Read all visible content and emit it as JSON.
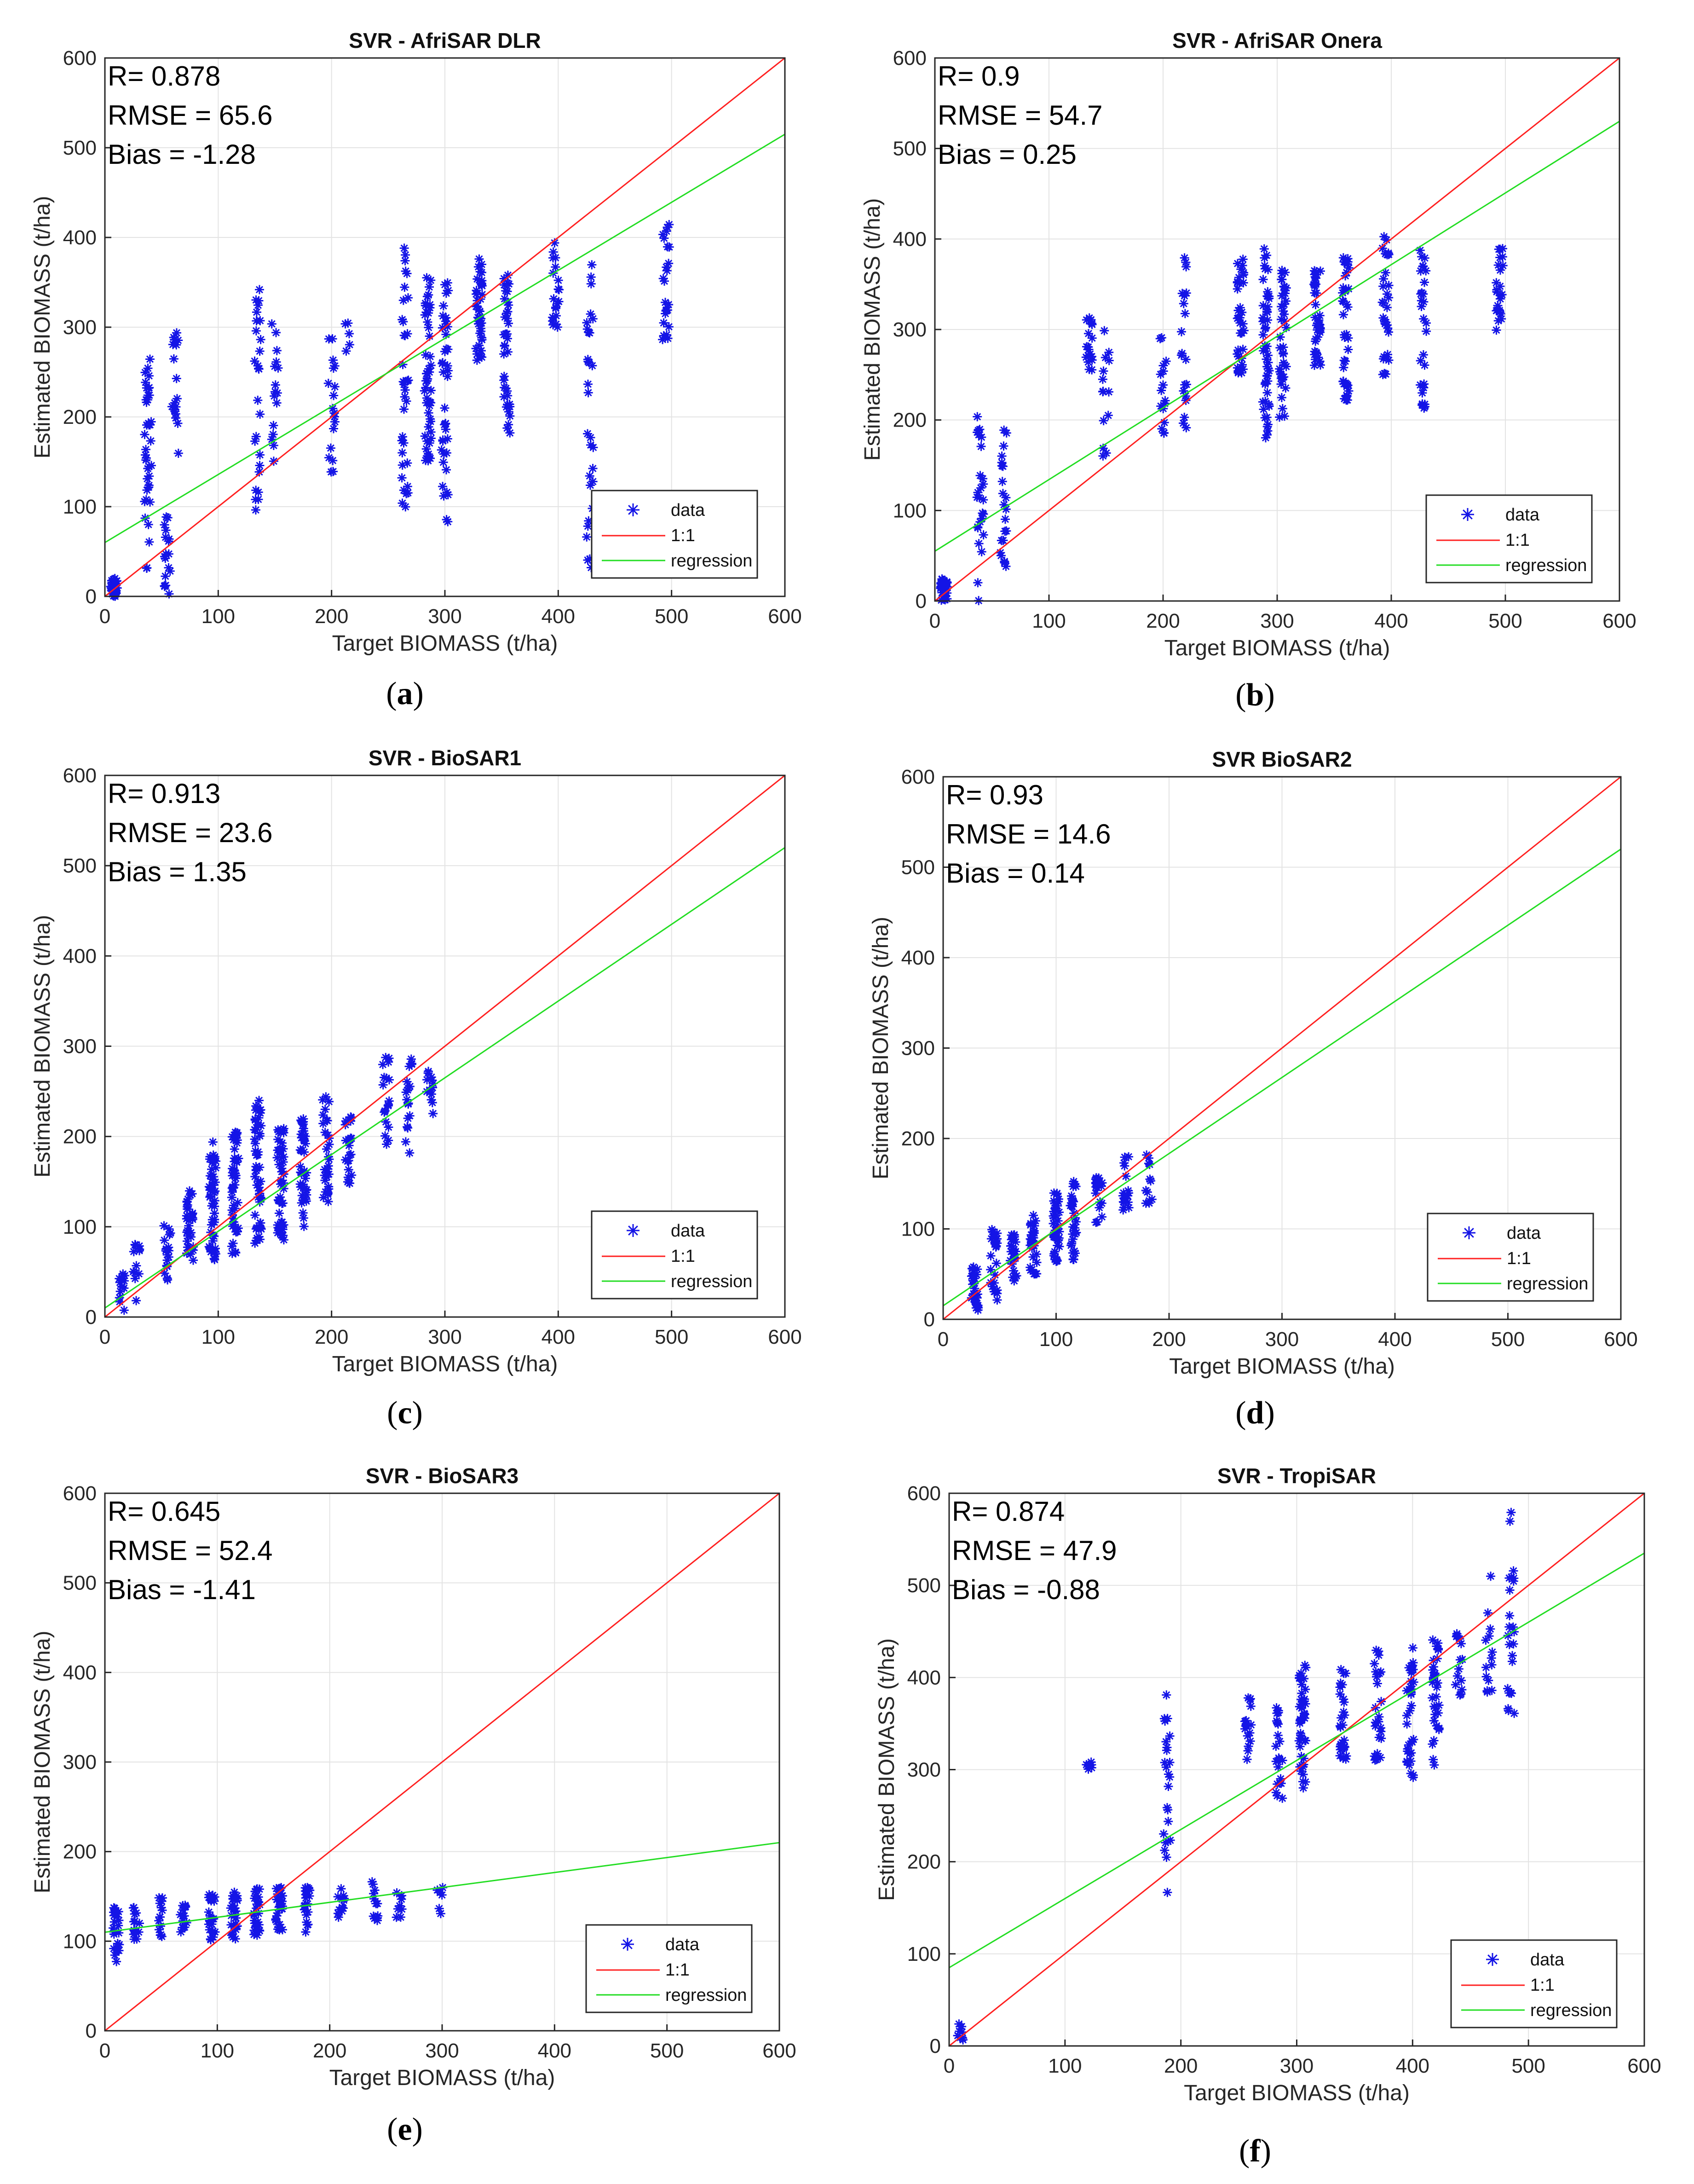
{
  "figure": {
    "panels": [
      {
        "caption_letter": "a",
        "stats": [
          "R= 0.878",
          "RMSE = 65.6",
          "Bias = -1.28"
        ],
        "legend": [
          "data",
          "1:1",
          "regression"
        ],
        "chart_data": {
          "type": "scatter",
          "title": "SVR - AfriSAR DLR",
          "xlabel": "Target BIOMASS (t/ha)",
          "ylabel": "Estimated BIOMASS (t/ha)",
          "xlim": [
            0,
            600
          ],
          "ylim": [
            0,
            600
          ],
          "xticks": [
            0,
            100,
            200,
            300,
            400,
            500,
            600
          ],
          "yticks": [
            0,
            100,
            200,
            300,
            400,
            500,
            600
          ],
          "grid": true,
          "legend_position": "bottom-right",
          "regression": {
            "intercept": 60,
            "end_value_at_600": 515
          },
          "clusters": [
            {
              "x": 8,
              "ylo": 0,
              "yhi": 20,
              "n": 40
            },
            {
              "x": 38,
              "ylo": 30,
              "yhi": 265,
              "n": 40
            },
            {
              "x": 55,
              "ylo": 0,
              "yhi": 90,
              "n": 18
            },
            {
              "x": 62,
              "ylo": 155,
              "yhi": 295,
              "n": 18
            },
            {
              "x": 135,
              "ylo": 85,
              "yhi": 355,
              "n": 26
            },
            {
              "x": 150,
              "ylo": 150,
              "yhi": 305,
              "n": 16
            },
            {
              "x": 200,
              "ylo": 130,
              "yhi": 290,
              "n": 18
            },
            {
              "x": 215,
              "ylo": 270,
              "yhi": 310,
              "n": 5
            },
            {
              "x": 265,
              "ylo": 90,
              "yhi": 400,
              "n": 36
            },
            {
              "x": 285,
              "ylo": 150,
              "yhi": 360,
              "n": 50
            },
            {
              "x": 300,
              "ylo": 80,
              "yhi": 350,
              "n": 40
            },
            {
              "x": 330,
              "ylo": 260,
              "yhi": 380,
              "n": 40
            },
            {
              "x": 355,
              "ylo": 180,
              "yhi": 370,
              "n": 40
            },
            {
              "x": 398,
              "ylo": 300,
              "yhi": 405,
              "n": 20
            },
            {
              "x": 428,
              "ylo": 25,
              "yhi": 385,
              "n": 30
            },
            {
              "x": 495,
              "ylo": 280,
              "yhi": 420,
              "n": 24
            }
          ]
        }
      },
      {
        "caption_letter": "b",
        "stats": [
          "R= 0.9",
          "RMSE = 54.7",
          "Bias = 0.25"
        ],
        "legend": [
          "data",
          "1:1",
          "regression"
        ],
        "chart_data": {
          "type": "scatter",
          "title": "SVR - AfriSAR Onera",
          "xlabel": "Target BIOMASS (t/ha)",
          "ylabel": "Estimated BIOMASS (t/ha)",
          "xlim": [
            0,
            600
          ],
          "ylim": [
            0,
            600
          ],
          "xticks": [
            0,
            100,
            200,
            300,
            400,
            500,
            600
          ],
          "yticks": [
            0,
            100,
            200,
            300,
            400,
            500,
            600
          ],
          "grid": true,
          "legend_position": "bottom-right",
          "regression": {
            "intercept": 55,
            "end_value_at_600": 530
          },
          "clusters": [
            {
              "x": 8,
              "ylo": 0,
              "yhi": 25,
              "n": 40
            },
            {
              "x": 40,
              "ylo": 0,
              "yhi": 220,
              "n": 26
            },
            {
              "x": 60,
              "ylo": 30,
              "yhi": 195,
              "n": 22
            },
            {
              "x": 135,
              "ylo": 250,
              "yhi": 320,
              "n": 18
            },
            {
              "x": 150,
              "ylo": 150,
              "yhi": 305,
              "n": 14
            },
            {
              "x": 200,
              "ylo": 185,
              "yhi": 300,
              "n": 16
            },
            {
              "x": 218,
              "ylo": 190,
              "yhi": 385,
              "n": 20
            },
            {
              "x": 268,
              "ylo": 250,
              "yhi": 380,
              "n": 36
            },
            {
              "x": 290,
              "ylo": 180,
              "yhi": 390,
              "n": 50
            },
            {
              "x": 305,
              "ylo": 200,
              "yhi": 380,
              "n": 40
            },
            {
              "x": 335,
              "ylo": 260,
              "yhi": 380,
              "n": 40
            },
            {
              "x": 360,
              "ylo": 220,
              "yhi": 380,
              "n": 40
            },
            {
              "x": 395,
              "ylo": 250,
              "yhi": 410,
              "n": 30
            },
            {
              "x": 428,
              "ylo": 210,
              "yhi": 390,
              "n": 30
            },
            {
              "x": 495,
              "ylo": 290,
              "yhi": 395,
              "n": 24
            }
          ]
        }
      },
      {
        "caption_letter": "c",
        "stats": [
          "R= 0.913",
          "RMSE = 23.6",
          "Bias = 1.35"
        ],
        "legend": [
          "data",
          "1:1",
          "regression"
        ],
        "chart_data": {
          "type": "scatter",
          "title": "SVR - BioSAR1",
          "xlabel": "Target BIOMASS (t/ha)",
          "ylabel": "Estimated BIOMASS (t/ha)",
          "xlim": [
            0,
            600
          ],
          "ylim": [
            0,
            600
          ],
          "xticks": [
            0,
            100,
            200,
            300,
            400,
            500,
            600
          ],
          "yticks": [
            0,
            100,
            200,
            300,
            400,
            500,
            600
          ],
          "grid": true,
          "legend_position": "bottom-right",
          "regression": {
            "intercept": 10,
            "end_value_at_600": 520
          },
          "clusters": [
            {
              "x": 15,
              "ylo": 5,
              "yhi": 55,
              "n": 14
            },
            {
              "x": 28,
              "ylo": 10,
              "yhi": 90,
              "n": 12
            },
            {
              "x": 55,
              "ylo": 40,
              "yhi": 110,
              "n": 18
            },
            {
              "x": 75,
              "ylo": 55,
              "yhi": 140,
              "n": 30
            },
            {
              "x": 95,
              "ylo": 60,
              "yhi": 195,
              "n": 50
            },
            {
              "x": 115,
              "ylo": 70,
              "yhi": 205,
              "n": 50
            },
            {
              "x": 135,
              "ylo": 80,
              "yhi": 240,
              "n": 50
            },
            {
              "x": 155,
              "ylo": 85,
              "yhi": 210,
              "n": 50
            },
            {
              "x": 175,
              "ylo": 100,
              "yhi": 220,
              "n": 40
            },
            {
              "x": 195,
              "ylo": 120,
              "yhi": 260,
              "n": 30
            },
            {
              "x": 215,
              "ylo": 140,
              "yhi": 230,
              "n": 24
            },
            {
              "x": 248,
              "ylo": 180,
              "yhi": 290,
              "n": 18
            },
            {
              "x": 268,
              "ylo": 180,
              "yhi": 290,
              "n": 18
            },
            {
              "x": 287,
              "ylo": 220,
              "yhi": 280,
              "n": 14
            }
          ]
        }
      },
      {
        "caption_letter": "d",
        "stats": [
          "R= 0.93",
          "RMSE = 14.6",
          "Bias = 0.14"
        ],
        "legend": [
          "data",
          "1:1",
          "regression"
        ],
        "chart_data": {
          "type": "scatter",
          "title": "SVR BioSAR2",
          "xlabel": "Target BIOMASS (t/ha)",
          "ylabel": "Estimated BIOMASS (t/ha)",
          "xlim": [
            0,
            600
          ],
          "ylim": [
            0,
            600
          ],
          "xticks": [
            0,
            100,
            200,
            300,
            400,
            500,
            600
          ],
          "yticks": [
            0,
            100,
            200,
            300,
            400,
            500,
            600
          ],
          "grid": true,
          "legend_position": "bottom-right",
          "regression": {
            "intercept": 15,
            "end_value_at_600": 520
          },
          "clusters": [
            {
              "x": 28,
              "ylo": 10,
              "yhi": 60,
              "n": 28
            },
            {
              "x": 45,
              "ylo": 20,
              "yhi": 100,
              "n": 26
            },
            {
              "x": 62,
              "ylo": 40,
              "yhi": 95,
              "n": 26
            },
            {
              "x": 80,
              "ylo": 50,
              "yhi": 125,
              "n": 32
            },
            {
              "x": 100,
              "ylo": 60,
              "yhi": 140,
              "n": 40
            },
            {
              "x": 115,
              "ylo": 65,
              "yhi": 155,
              "n": 32
            },
            {
              "x": 138,
              "ylo": 100,
              "yhi": 160,
              "n": 18
            },
            {
              "x": 162,
              "ylo": 120,
              "yhi": 180,
              "n": 18
            },
            {
              "x": 182,
              "ylo": 120,
              "yhi": 185,
              "n": 12
            }
          ]
        }
      },
      {
        "caption_letter": "e",
        "stats": [
          "R= 0.645",
          "RMSE = 52.4",
          "Bias = -1.41"
        ],
        "legend": [
          "data",
          "1:1",
          "regression"
        ],
        "chart_data": {
          "type": "scatter",
          "title": "SVR - BioSAR3",
          "xlabel": "Target BIOMASS (t/ha)",
          "ylabel": "Estimated BIOMASS (t/ha)",
          "xlim": [
            0,
            600
          ],
          "ylim": [
            0,
            600
          ],
          "xticks": [
            0,
            100,
            200,
            300,
            400,
            500,
            600
          ],
          "yticks": [
            0,
            100,
            200,
            300,
            400,
            500,
            600
          ],
          "grid": true,
          "legend_position": "bottom-right",
          "regression": {
            "intercept": 110,
            "end_value_at_600": 210
          },
          "clusters": [
            {
              "x": 10,
              "ylo": 75,
              "yhi": 140,
              "n": 22
            },
            {
              "x": 28,
              "ylo": 95,
              "yhi": 140,
              "n": 14
            },
            {
              "x": 50,
              "ylo": 105,
              "yhi": 150,
              "n": 14
            },
            {
              "x": 70,
              "ylo": 105,
              "yhi": 145,
              "n": 14
            },
            {
              "x": 95,
              "ylo": 100,
              "yhi": 155,
              "n": 24
            },
            {
              "x": 115,
              "ylo": 100,
              "yhi": 155,
              "n": 28
            },
            {
              "x": 135,
              "ylo": 105,
              "yhi": 160,
              "n": 28
            },
            {
              "x": 155,
              "ylo": 110,
              "yhi": 160,
              "n": 28
            },
            {
              "x": 180,
              "ylo": 110,
              "yhi": 160,
              "n": 18
            },
            {
              "x": 210,
              "ylo": 125,
              "yhi": 160,
              "n": 12
            },
            {
              "x": 240,
              "ylo": 120,
              "yhi": 170,
              "n": 12
            },
            {
              "x": 262,
              "ylo": 125,
              "yhi": 160,
              "n": 8
            },
            {
              "x": 298,
              "ylo": 130,
              "yhi": 160,
              "n": 6
            }
          ]
        }
      },
      {
        "caption_letter": "f",
        "stats": [
          "R= 0.874",
          "RMSE = 47.9",
          "Bias = -0.88"
        ],
        "legend": [
          "data",
          "1:1",
          "regression"
        ],
        "chart_data": {
          "type": "scatter",
          "title": "SVR - TropiSAR",
          "xlabel": "Target BIOMASS (t/ha)",
          "ylabel": "Estimated BIOMASS (t/ha)",
          "xlim": [
            0,
            600
          ],
          "ylim": [
            0,
            600
          ],
          "xticks": [
            0,
            100,
            200,
            300,
            400,
            500,
            600
          ],
          "yticks": [
            0,
            100,
            200,
            300,
            400,
            500,
            600
          ],
          "grid": true,
          "legend_position": "bottom-right",
          "regression": {
            "intercept": 85,
            "end_value_at_600": 535
          },
          "clusters": [
            {
              "x": 10,
              "ylo": 5,
              "yhi": 25,
              "n": 10
            },
            {
              "x": 120,
              "ylo": 300,
              "yhi": 310,
              "n": 6
            },
            {
              "x": 188,
              "ylo": 160,
              "yhi": 385,
              "n": 24
            },
            {
              "x": 258,
              "ylo": 300,
              "yhi": 380,
              "n": 16
            },
            {
              "x": 285,
              "ylo": 265,
              "yhi": 370,
              "n": 22
            },
            {
              "x": 305,
              "ylo": 280,
              "yhi": 420,
              "n": 44
            },
            {
              "x": 340,
              "ylo": 300,
              "yhi": 415,
              "n": 30
            },
            {
              "x": 370,
              "ylo": 310,
              "yhi": 430,
              "n": 24
            },
            {
              "x": 398,
              "ylo": 285,
              "yhi": 440,
              "n": 36
            },
            {
              "x": 420,
              "ylo": 300,
              "yhi": 445,
              "n": 32
            },
            {
              "x": 440,
              "ylo": 380,
              "yhi": 450,
              "n": 14
            },
            {
              "x": 466,
              "ylo": 380,
              "yhi": 510,
              "n": 14
            },
            {
              "x": 485,
              "ylo": 335,
              "yhi": 580,
              "n": 24
            }
          ]
        }
      }
    ]
  }
}
